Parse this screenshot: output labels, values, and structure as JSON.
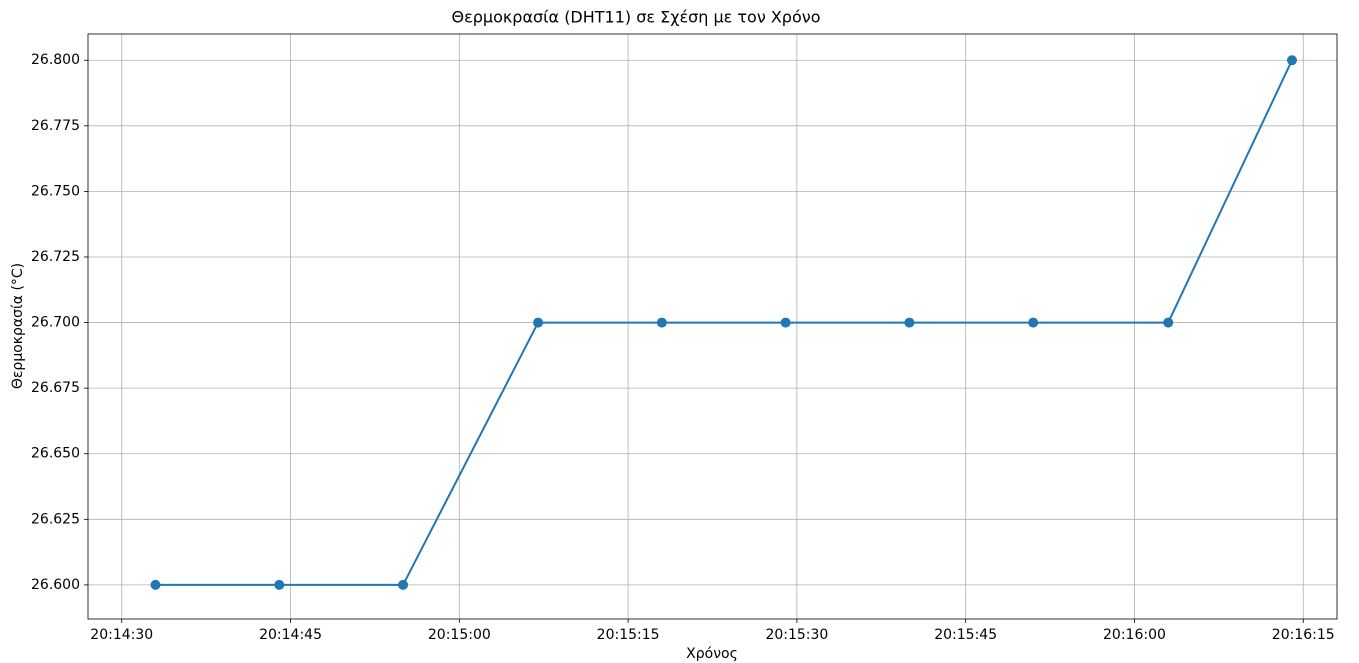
{
  "chart_data": {
    "type": "line",
    "title": "Θερμοκρασία (DHT11) σε Σχέση με τον Χρόνο",
    "x_label": "Χρόνος",
    "y_label": "Θερμοκρασία (°C)",
    "x": [
      "20:14:33",
      "20:14:44",
      "20:14:55",
      "20:15:07",
      "20:15:18",
      "20:15:29",
      "20:15:40",
      "20:15:51",
      "20:16:03",
      "20:16:14"
    ],
    "series": [
      {
        "name": "Θερμοκρασία",
        "color": "#1f77b4",
        "values": [
          26.6,
          26.6,
          26.6,
          26.7,
          26.7,
          26.7,
          26.7,
          26.7,
          26.7,
          26.8
        ]
      }
    ],
    "xlim": [
      "20:14:27",
      "20:16:18"
    ],
    "xticks": [
      "20:14:30",
      "20:14:45",
      "20:15:00",
      "20:15:15",
      "20:15:30",
      "20:15:45",
      "20:16:00",
      "20:16:15"
    ],
    "ylim": [
      26.587,
      26.81
    ],
    "yticks": [
      {
        "value": 26.6,
        "label": "26.600"
      },
      {
        "value": 26.625,
        "label": "26.625"
      },
      {
        "value": 26.65,
        "label": "26.650"
      },
      {
        "value": 26.675,
        "label": "26.675"
      },
      {
        "value": 26.7,
        "label": "26.700"
      },
      {
        "value": 26.725,
        "label": "26.725"
      },
      {
        "value": 26.75,
        "label": "26.750"
      },
      {
        "value": 26.775,
        "label": "26.775"
      },
      {
        "value": 26.8,
        "label": "26.800"
      }
    ],
    "grid": true
  }
}
